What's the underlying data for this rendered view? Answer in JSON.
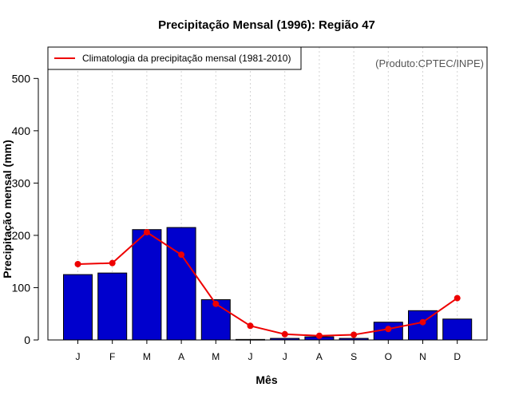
{
  "chart_data": {
    "type": "bar",
    "title": "Precipitação Mensal (1996): Região 47",
    "xlabel": "Mês",
    "ylabel": "Precipitação mensal (mm)",
    "ylim": [
      0,
      560
    ],
    "yticks": [
      0,
      100,
      200,
      300,
      400,
      500
    ],
    "grid": true,
    "credit": "(Produto:CPTEC/INPE)",
    "legend_position": "top-left",
    "categories": [
      "J",
      "F",
      "M",
      "A",
      "M",
      "J",
      "J",
      "A",
      "S",
      "O",
      "N",
      "D"
    ],
    "series": [
      {
        "name": "Precipitação mensal (1996)",
        "kind": "bar",
        "color": "#0000cd",
        "values": [
          125,
          128,
          211,
          215,
          77,
          1,
          3,
          6,
          3,
          34,
          56,
          40
        ]
      },
      {
        "name": "Climatologia da precipitação mensal (1981-2010)",
        "kind": "line",
        "color": "#ee0000",
        "values": [
          145,
          147,
          206,
          163,
          69,
          27,
          11,
          8,
          10,
          21,
          34,
          80
        ]
      }
    ]
  }
}
